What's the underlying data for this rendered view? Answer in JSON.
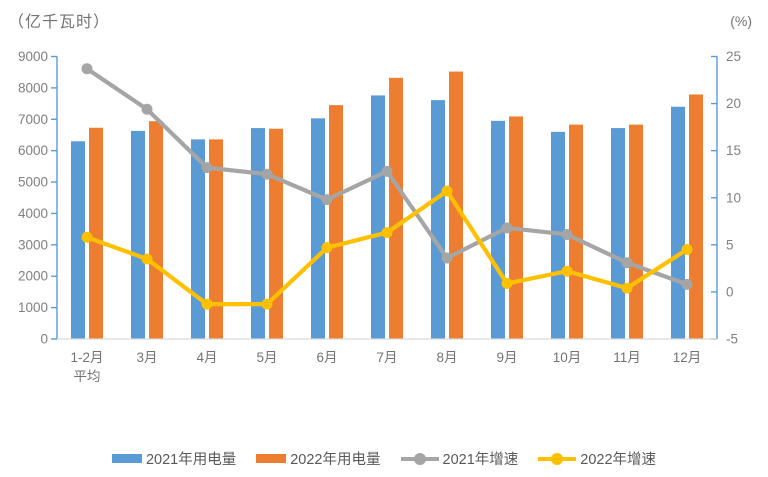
{
  "chart_data": {
    "type": "combo-bar-line",
    "title_left": "（亿千瓦时）",
    "title_right": "(%)",
    "categories": [
      "1-2月\n平均",
      "3月",
      "4月",
      "5月",
      "6月",
      "7月",
      "8月",
      "9月",
      "10月",
      "11月",
      "12月"
    ],
    "series": [
      {
        "name": "2021年用电量",
        "type": "bar",
        "axis": "left",
        "color": "#5B9BD5",
        "values": [
          6300,
          6630,
          6360,
          6720,
          7030,
          7760,
          7610,
          6950,
          6600,
          6720,
          7400
        ]
      },
      {
        "name": "2022年用电量",
        "type": "bar",
        "axis": "left",
        "color": "#ED7D31",
        "values": [
          6730,
          6940,
          6360,
          6700,
          7450,
          8320,
          8520,
          7090,
          6830,
          6830,
          7790
        ]
      },
      {
        "name": "2021年增速",
        "type": "line",
        "axis": "right",
        "color": "#A5A5A5",
        "values": [
          23.7,
          19.4,
          13.2,
          12.5,
          9.8,
          12.8,
          3.6,
          6.8,
          6.1,
          3.1,
          0.8
        ]
      },
      {
        "name": "2022年增速",
        "type": "line",
        "axis": "right",
        "color": "#FFC000",
        "values": [
          5.8,
          3.5,
          -1.3,
          -1.3,
          4.7,
          6.3,
          10.7,
          0.9,
          2.2,
          0.4,
          4.5
        ]
      }
    ],
    "left_axis": {
      "min": 0,
      "max": 9000,
      "step": 1000,
      "ticks": [
        "0",
        "1000",
        "2000",
        "3000",
        "4000",
        "5000",
        "6000",
        "7000",
        "8000",
        "9000"
      ]
    },
    "right_axis": {
      "min": -5,
      "max": 25,
      "step": 5,
      "ticks": [
        "-5",
        "0",
        "5",
        "10",
        "15",
        "20",
        "25"
      ]
    },
    "legend_position": "bottom",
    "grid": false
  },
  "colors": {
    "axis_line": "#5B9BD5",
    "tick_label": "#808080",
    "category_label": "#737373",
    "baseline": "#D9D9D9",
    "legend_text": "#595959",
    "background": "#FFFFFF"
  }
}
